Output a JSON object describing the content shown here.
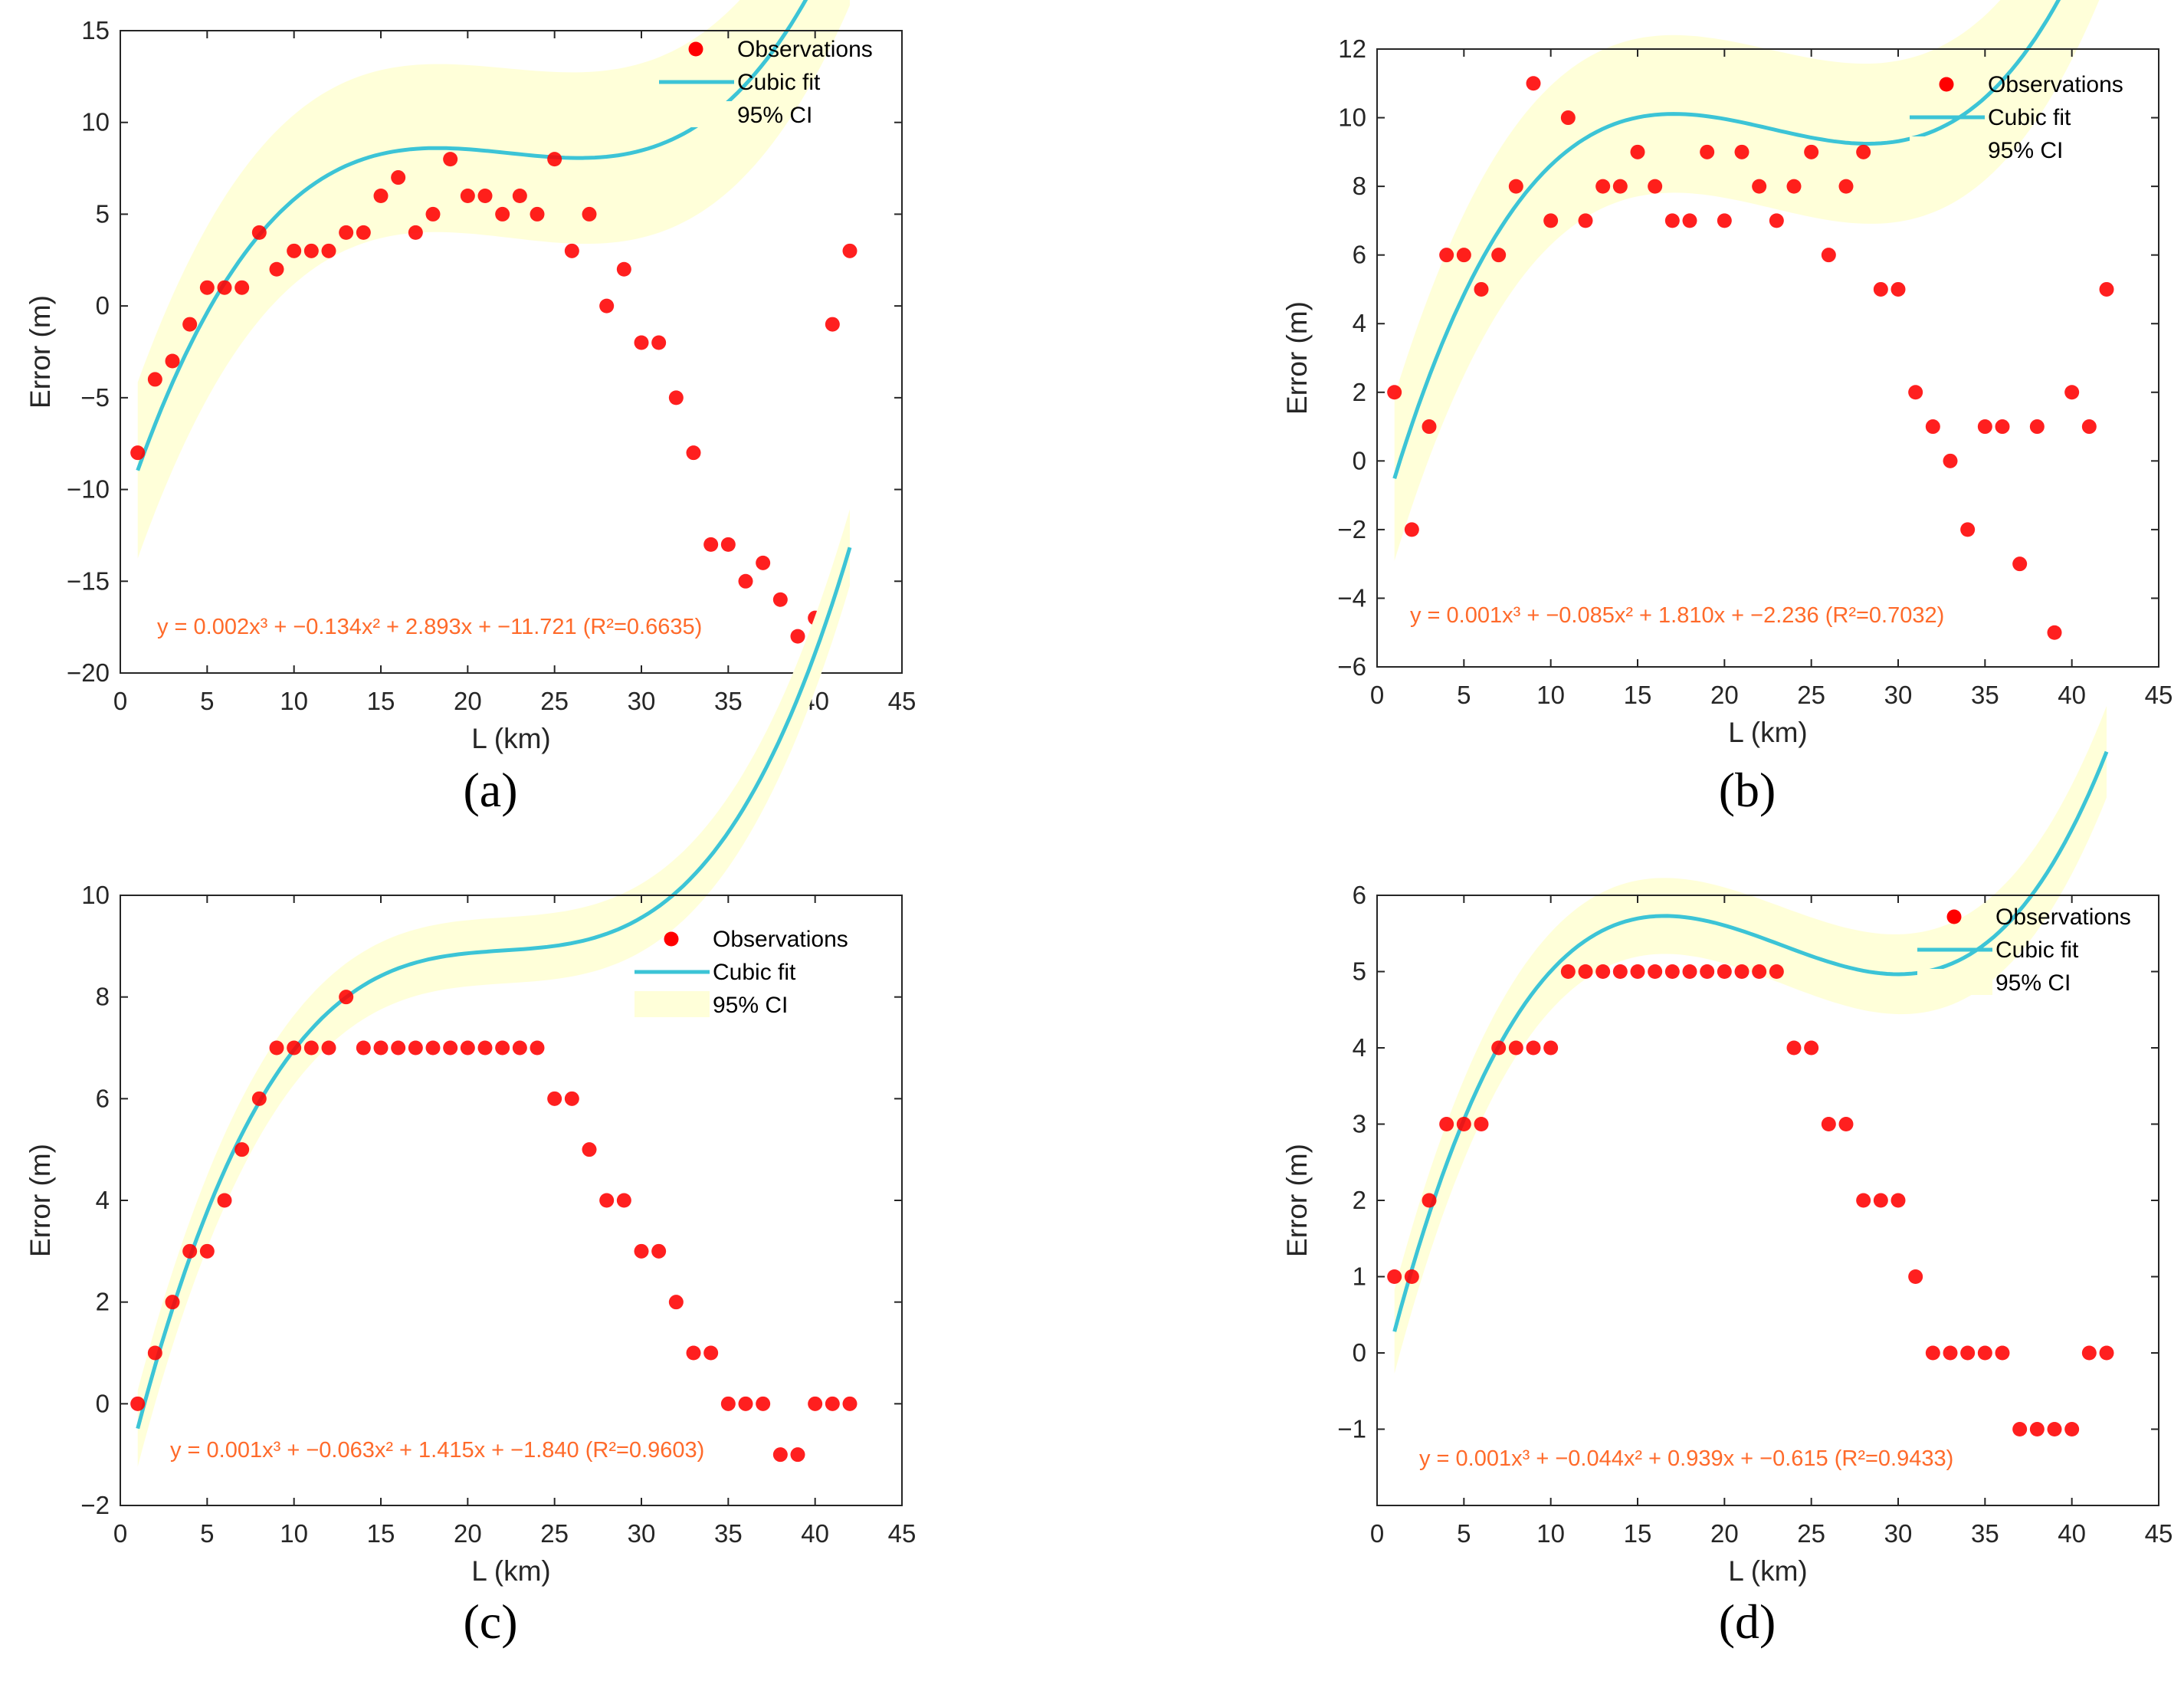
{
  "colors": {
    "observation": "#ff0000",
    "fit": "#3cc4d6",
    "ci": "#ffffd9",
    "equation": "#ff6a2a",
    "axis": "#262626"
  },
  "chart_data": [
    {
      "panel_label": "(a)",
      "type": "scatter",
      "xlabel": "L (km)",
      "ylabel": "Error (m)",
      "xlim": [
        0,
        45
      ],
      "ylim": [
        -20,
        15
      ],
      "xticks": [
        0,
        5,
        10,
        15,
        20,
        25,
        30,
        35,
        40,
        45
      ],
      "yticks": [
        -20,
        -15,
        -10,
        -5,
        0,
        5,
        10,
        15
      ],
      "xtick_labels": [
        "0",
        "5",
        "10",
        "15",
        "20",
        "25",
        "30",
        "35",
        "40",
        "45"
      ],
      "ytick_labels": [
        "−20",
        "−15",
        "−10",
        "−5",
        "0",
        "5",
        "10",
        "15"
      ],
      "legend": [
        "Observations",
        "Cubic fit",
        "95% CI"
      ],
      "legend_position": "top-right",
      "equation": "y = 0.002x³ + −0.134x² + 2.893x + −11.721 (R²=0.6635)",
      "x": [
        1,
        2,
        3,
        4,
        5,
        6,
        7,
        8,
        9,
        10,
        11,
        12,
        13,
        14,
        15,
        16,
        17,
        18,
        19,
        20,
        21,
        22,
        23,
        24,
        25,
        26,
        27,
        28,
        29,
        30,
        31,
        32,
        33,
        34,
        35,
        36,
        37,
        38,
        39,
        40,
        41,
        42
      ],
      "y": [
        -8,
        -4,
        -3,
        -1,
        1,
        1,
        1,
        4,
        2,
        3,
        3,
        3,
        4,
        4,
        6,
        7,
        4,
        5,
        8,
        6,
        6,
        5,
        6,
        5,
        8,
        3,
        5,
        0,
        2,
        -2,
        -2,
        -5,
        -8,
        -13,
        -13,
        -15,
        -14,
        -16,
        -18,
        -17,
        -1,
        3
      ],
      "fit_coefficients": [
        0.002,
        -0.134,
        2.893,
        -11.721
      ],
      "ci_halfwidth_ends": [
        4.8,
        5.2
      ],
      "ci_halfwidth_mid": 4.6
    },
    {
      "panel_label": "(b)",
      "type": "scatter",
      "xlabel": "L (km)",
      "ylabel": "Error (m)",
      "xlim": [
        0,
        45
      ],
      "ylim": [
        -6,
        12
      ],
      "xticks": [
        0,
        5,
        10,
        15,
        20,
        25,
        30,
        35,
        40,
        45
      ],
      "yticks": [
        -6,
        -4,
        -2,
        0,
        2,
        4,
        6,
        8,
        10,
        12
      ],
      "xtick_labels": [
        "0",
        "5",
        "10",
        "15",
        "20",
        "25",
        "30",
        "35",
        "40",
        "45"
      ],
      "ytick_labels": [
        "−6",
        "−4",
        "−2",
        "0",
        "2",
        "4",
        "6",
        "8",
        "10",
        "12"
      ],
      "legend": [
        "Observations",
        "Cubic fit",
        "95% CI"
      ],
      "legend_position": "top-right",
      "equation": "y = 0.001x³ + −0.085x² + 1.810x + −2.236 (R²=0.7032)",
      "x": [
        1,
        2,
        3,
        4,
        5,
        6,
        7,
        8,
        9,
        10,
        11,
        12,
        13,
        14,
        15,
        16,
        17,
        18,
        19,
        20,
        21,
        22,
        23,
        24,
        25,
        26,
        27,
        28,
        29,
        30,
        31,
        32,
        33,
        34,
        35,
        36,
        37,
        38,
        39,
        40,
        41,
        42
      ],
      "y": [
        2,
        -2,
        1,
        6,
        6,
        5,
        6,
        8,
        11,
        7,
        10,
        7,
        8,
        8,
        9,
        8,
        7,
        7,
        9,
        7,
        9,
        8,
        7,
        8,
        9,
        6,
        8,
        9,
        5,
        5,
        2,
        1,
        0,
        -2,
        1,
        1,
        -3,
        1,
        -5,
        2,
        1,
        5
      ],
      "fit_coefficients": [
        0.00125,
        -0.085,
        1.81,
        -2.236
      ],
      "ci_halfwidth_ends": [
        2.4,
        2.5
      ],
      "ci_halfwidth_mid": 2.3
    },
    {
      "panel_label": "(c)",
      "type": "scatter",
      "xlabel": "L (km)",
      "ylabel": "Error (m)",
      "xlim": [
        0,
        45
      ],
      "ylim": [
        -2,
        10
      ],
      "xticks": [
        0,
        5,
        10,
        15,
        20,
        25,
        30,
        35,
        40,
        45
      ],
      "yticks": [
        -2,
        0,
        2,
        4,
        6,
        8,
        10
      ],
      "xtick_labels": [
        "0",
        "5",
        "10",
        "15",
        "20",
        "25",
        "30",
        "35",
        "40",
        "45"
      ],
      "ytick_labels": [
        "−2",
        "0",
        "2",
        "4",
        "6",
        "8",
        "10"
      ],
      "legend": [
        "Observations",
        "Cubic fit",
        "95% CI"
      ],
      "legend_position": "top-right",
      "equation": "y = 0.001x³ + −0.063x² + 1.415x + −1.840 (R²=0.9603)",
      "x": [
        1,
        2,
        3,
        4,
        5,
        6,
        7,
        8,
        9,
        10,
        11,
        12,
        13,
        14,
        15,
        16,
        17,
        18,
        19,
        20,
        21,
        22,
        23,
        24,
        25,
        26,
        27,
        28,
        29,
        30,
        31,
        32,
        33,
        34,
        35,
        36,
        37,
        38,
        39,
        40,
        41,
        42
      ],
      "y": [
        0,
        1,
        2,
        3,
        3,
        4,
        5,
        6,
        7,
        7,
        7,
        7,
        8,
        7,
        7,
        7,
        7,
        7,
        7,
        7,
        7,
        7,
        7,
        7,
        6,
        6,
        5,
        4,
        4,
        3,
        3,
        2,
        1,
        1,
        0,
        0,
        0,
        -1,
        -1,
        0,
        0,
        0
      ],
      "fit_coefficients": [
        0.00095,
        -0.063,
        1.415,
        -1.84
      ],
      "ci_halfwidth_ends": [
        0.75,
        0.75
      ],
      "ci_halfwidth_mid": 0.65
    },
    {
      "panel_label": "(d)",
      "type": "scatter",
      "xlabel": "L (km)",
      "ylabel": "Error (m)",
      "xlim": [
        0,
        45
      ],
      "ylim": [
        -2,
        6
      ],
      "xticks": [
        0,
        5,
        10,
        15,
        20,
        25,
        30,
        35,
        40,
        45
      ],
      "yticks": [
        -1,
        0,
        1,
        2,
        3,
        4,
        5,
        6
      ],
      "xtick_labels": [
        "0",
        "5",
        "10",
        "15",
        "20",
        "25",
        "30",
        "35",
        "40",
        "45"
      ],
      "ytick_labels": [
        "−1",
        "0",
        "1",
        "2",
        "3",
        "4",
        "5",
        "6"
      ],
      "legend": [
        "Observations",
        "Cubic fit",
        "95% CI"
      ],
      "legend_position": "top-right",
      "equation": "y = 0.001x³ + −0.044x² + 0.939x + −0.615 (R²=0.9433)",
      "x": [
        1,
        2,
        3,
        4,
        5,
        6,
        7,
        8,
        9,
        10,
        11,
        12,
        13,
        14,
        15,
        16,
        17,
        18,
        19,
        20,
        21,
        22,
        23,
        24,
        25,
        26,
        27,
        28,
        29,
        30,
        31,
        32,
        33,
        34,
        35,
        36,
        37,
        38,
        39,
        40,
        41,
        42
      ],
      "y": [
        1,
        1,
        2,
        3,
        3,
        3,
        4,
        4,
        4,
        4,
        5,
        5,
        5,
        5,
        5,
        5,
        5,
        5,
        5,
        5,
        5,
        5,
        5,
        4,
        4,
        3,
        3,
        2,
        2,
        2,
        1,
        0,
        0,
        0,
        0,
        0,
        -1,
        -1,
        -1,
        -1,
        0,
        0
      ],
      "fit_coefficients": [
        0.00063,
        -0.044,
        0.939,
        -0.615
      ],
      "ci_halfwidth_ends": [
        0.55,
        0.6
      ],
      "ci_halfwidth_mid": 0.5
    }
  ]
}
